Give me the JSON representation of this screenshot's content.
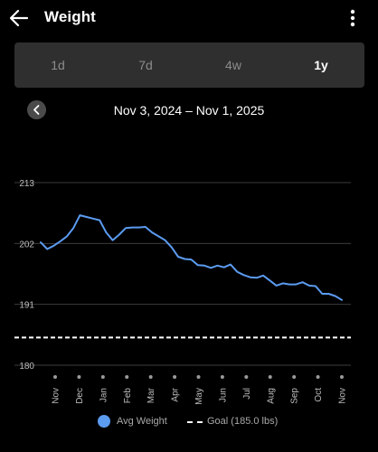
{
  "header": {
    "title": "Weight"
  },
  "segments": [
    {
      "label": "1d",
      "active": false
    },
    {
      "label": "7d",
      "active": false
    },
    {
      "label": "4w",
      "active": false
    },
    {
      "label": "1y",
      "active": true
    }
  ],
  "range_label": "Nov 3, 2024 – Nov 1, 2025",
  "legend": {
    "avg": "Avg Weight",
    "goal": "Goal (185.0 lbs)"
  },
  "colors": {
    "line": "#5b9bf0",
    "background": "#000000",
    "segment_bg": "#2f2f2f"
  },
  "chart_data": {
    "type": "line",
    "ylim": [
      180,
      213
    ],
    "yticks": [
      213,
      202,
      191,
      180
    ],
    "month_labels": [
      "Nov",
      "Dec",
      "Jan",
      "Feb",
      "Mar",
      "Apr",
      "May",
      "Jun",
      "Jul",
      "Aug",
      "Sep",
      "Oct",
      "Nov"
    ],
    "goal": 185,
    "grid": true,
    "series": [
      {
        "name": "Avg Weight",
        "values": [
          202.2,
          201.0,
          201.6,
          202.4,
          203.3,
          204.8,
          207.1,
          206.8,
          206.5,
          206.2,
          204.0,
          202.6,
          203.6,
          204.8,
          204.9,
          204.9,
          205.0,
          204.0,
          203.3,
          202.6,
          201.3,
          199.6,
          199.2,
          199.1,
          198.1,
          198.0,
          197.6,
          198.0,
          197.7,
          198.2,
          196.9,
          196.3,
          195.9,
          195.8,
          196.2,
          195.3,
          194.4,
          194.8,
          194.6,
          194.6,
          195.0,
          194.4,
          194.3,
          192.9,
          192.9,
          192.5,
          191.8
        ]
      }
    ]
  }
}
